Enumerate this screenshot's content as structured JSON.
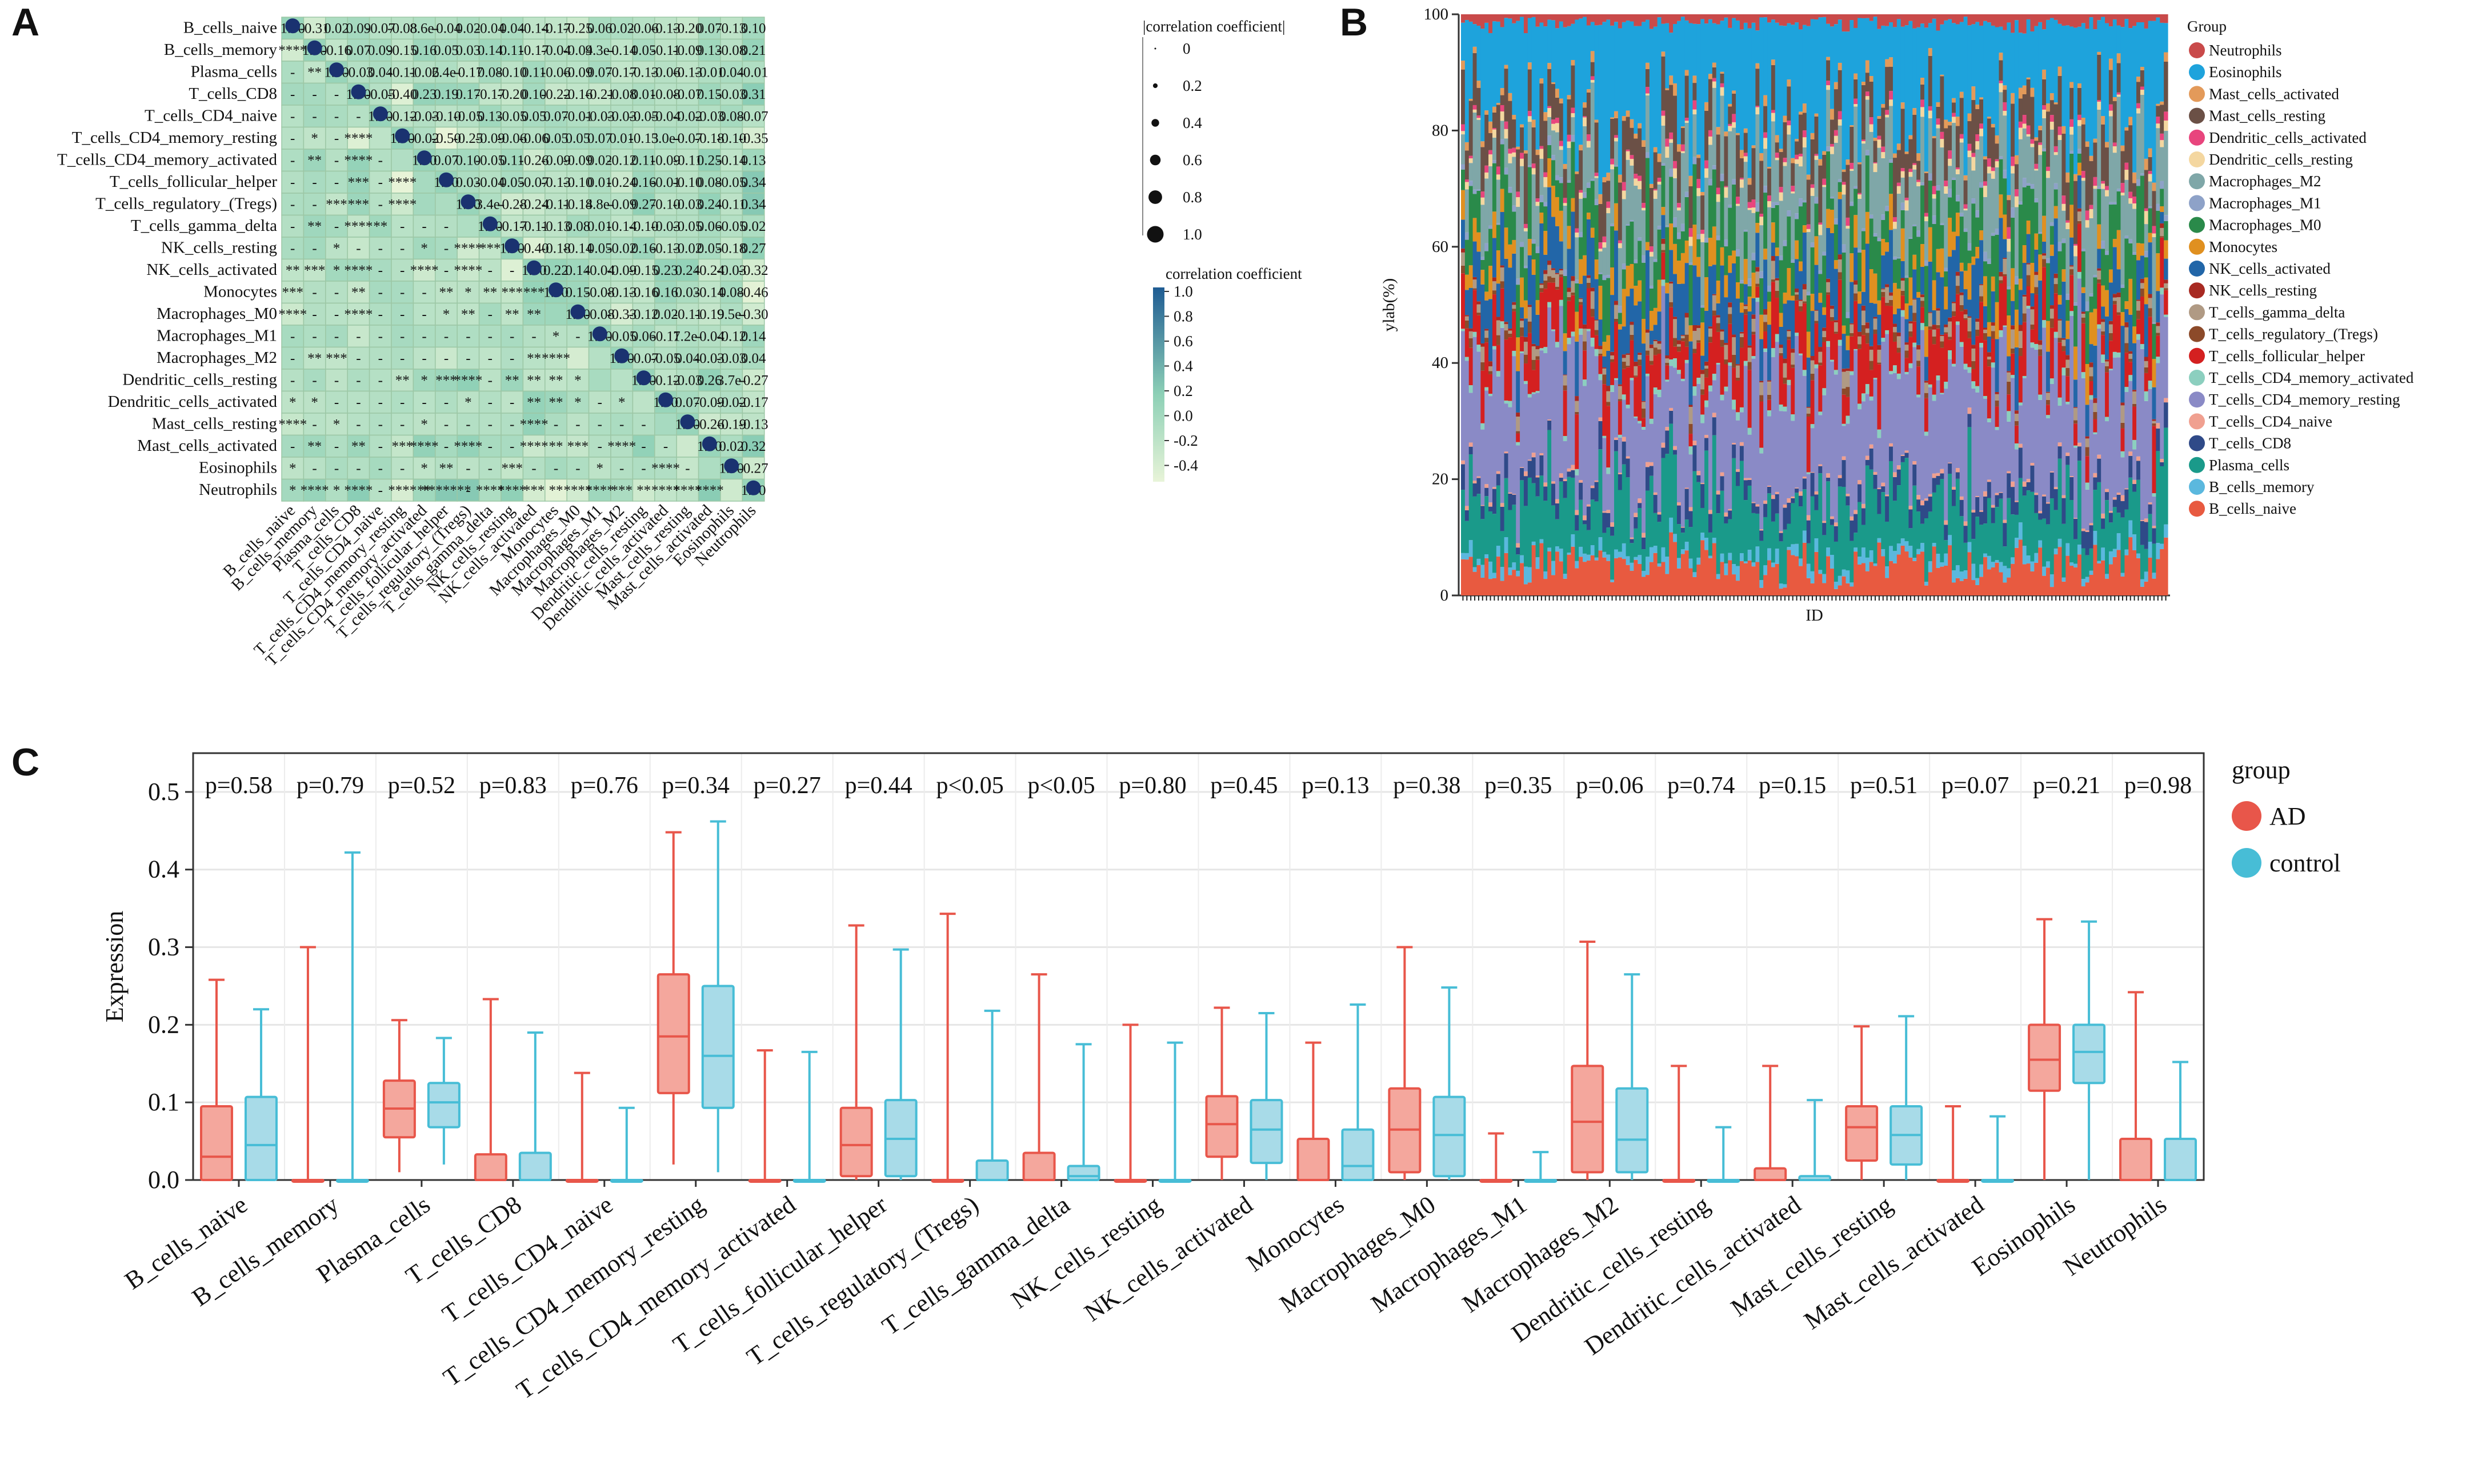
{
  "panels": {
    "a": "A",
    "b": "B",
    "c": "C"
  },
  "colors": {
    "ad": "#e8564a",
    "ad_fill": "#f4a79d",
    "control": "#47bdd6",
    "control_fill": "#a8dbe8",
    "heat_low": "#e8f4d8",
    "heat_mid": "#8dd0b6",
    "heat_high": "#1f5c93",
    "dot": "#1a3270"
  },
  "chart_data": [
    {
      "type": "heatmap",
      "panel": "A",
      "title": "",
      "cells": [
        "B_cells_naive",
        "B_cells_memory",
        "Plasma_cells",
        "T_cells_CD8",
        "T_cells_CD4_naive",
        "T_cells_CD4_memory_resting",
        "T_cells_CD4_memory_activated",
        "T_cells_follicular_helper",
        "T_cells_regulatory_(Tregs)",
        "T_cells_gamma_delta",
        "NK_cells_resting",
        "NK_cells_activated",
        "Monocytes",
        "Macrophages_M0",
        "Macrophages_M1",
        "Macrophages_M2",
        "Dendritic_cells_resting",
        "Dendritic_cells_activated",
        "Mast_cells_resting",
        "Mast_cells_activated",
        "Eosinophils",
        "Neutrophils"
      ],
      "upper_labels": [
        [
          "1.00",
          "-0.31",
          "0.02",
          "0.09",
          "-0.07",
          "-0.08",
          "8.6e-",
          "-0.04",
          "0.02",
          "-0.04",
          "0.04",
          "-0.14",
          "-0.17",
          "-0.25",
          "0.06",
          "0.02",
          "-0.06",
          "-0.13",
          "-0.20",
          "0.07",
          "-0.13",
          "0.10"
        ],
        [
          "",
          "1.00",
          "-0.16",
          "0.07",
          "0.09",
          "-0.15",
          "0.16",
          "0.05",
          "0.03",
          "0.14",
          "0.11",
          "-0.17",
          "-0.04",
          "-0.04",
          "9.3e-",
          "-0.14",
          "0.05",
          "-0.11",
          "-0.09",
          "0.13",
          "-0.08",
          "0.21"
        ],
        [
          "",
          "",
          "1.00",
          "-0.03",
          "0.04",
          "-0.11",
          "-0.06",
          "2.4e-",
          "-0.17",
          "0.08",
          "-0.10",
          "0.11",
          "-0.06",
          "-0.09",
          "0.07",
          "-0.17",
          "-0.13",
          "-0.06",
          "-0.13",
          "-0.01",
          "0.04",
          "-0.01"
        ],
        [
          "",
          "",
          "",
          "1.00",
          "-0.05",
          "-0.40",
          "0.23",
          "0.19",
          "0.17",
          "-0.17",
          "-0.20",
          "0.10",
          "-0.22",
          "-0.16",
          "-0.21",
          "-0.08",
          "0.01",
          "-0.08",
          "-0.07",
          "0.15",
          "-0.03",
          "0.31"
        ],
        [
          "",
          "",
          "",
          "",
          "1.00",
          "-0.12",
          "-0.03",
          "-0.10",
          "-0.05",
          "0.13",
          "-0.05",
          "0.05",
          "0.07",
          "-0.01",
          "-0.03",
          "-0.03",
          "-0.05",
          "-0.04",
          "-0.02",
          "-0.03",
          "0.08",
          "-0.07"
        ],
        [
          "",
          "",
          "",
          "",
          "",
          "1.00",
          "-0.02",
          "-0.50",
          "-0.25",
          "-0.09",
          "-0.06",
          "-0.06",
          "0.05",
          "0.05",
          "0.07",
          "0.01",
          "-0.13",
          "5.0e-",
          "-0.07",
          "-0.18",
          "-0.10",
          "-0.35"
        ],
        [
          "",
          "",
          "",
          "",
          "",
          "",
          "1.00",
          "0.07",
          "0.10",
          "-0.05",
          "0.11",
          "-0.26",
          "-0.09",
          "-0.09",
          "0.02",
          "-0.12",
          "0.11",
          "-0.09",
          "-0.11",
          "0.25",
          "-0.14",
          "0.13"
        ],
        [
          "",
          "",
          "",
          "",
          "",
          "",
          "",
          "1.00",
          "0.03",
          "-0.04",
          "0.05",
          "-0.07",
          "-0.13",
          "-0.10",
          "0.01",
          "-0.24",
          "0.16",
          "-0.01",
          "-0.10",
          "0.08",
          "-0.05",
          "0.34"
        ],
        [
          "",
          "",
          "",
          "",
          "",
          "",
          "",
          "",
          "1.00",
          "3.4e-",
          "-0.28",
          "-0.24",
          "-0.11",
          "-0.14",
          "8.8e-",
          "-0.09",
          "0.27",
          "-0.10",
          "-0.03",
          "0.24",
          "-0.11",
          "0.34"
        ],
        [
          "",
          "",
          "",
          "",
          "",
          "",
          "",
          "",
          "",
          "1.00",
          "-0.17",
          "-0.11",
          "-0.13",
          "0.08",
          "0.01",
          "-0.14",
          "-0.10",
          "-0.03",
          "-0.05",
          "0.06",
          "-0.05",
          "0.02"
        ],
        [
          "",
          "",
          "",
          "",
          "",
          "",
          "",
          "",
          "",
          "",
          "1.00",
          "-0.40",
          "-0.18",
          "-0.14",
          "0.05",
          "-0.02",
          "0.16",
          "-0.13",
          "-0.02",
          "0.05",
          "-0.18",
          "0.27"
        ],
        [
          "",
          "",
          "",
          "",
          "",
          "",
          "",
          "",
          "",
          "",
          "",
          "1.00",
          "0.22",
          "0.14",
          "-0.04",
          "-0.09",
          "-0.15",
          "0.23",
          "0.24",
          "-0.24",
          "-0.03",
          "-0.32"
        ],
        [
          "",
          "",
          "",
          "",
          "",
          "",
          "",
          "",
          "",
          "",
          "",
          "",
          "1.00",
          "0.15",
          "-0.08",
          "-0.13",
          "-0.16",
          "0.16",
          "0.03",
          "-0.14",
          "0.08",
          "-0.46"
        ],
        [
          "",
          "",
          "",
          "",
          "",
          "",
          "",
          "",
          "",
          "",
          "",
          "",
          "",
          "1.00",
          "-0.08",
          "-0.33",
          "-0.12",
          "0.02",
          "-0.11",
          "-0.19",
          "9.5e-",
          "-0.30"
        ],
        [
          "",
          "",
          "",
          "",
          "",
          "",
          "",
          "",
          "",
          "",
          "",
          "",
          "",
          "",
          "1.00",
          "-0.05",
          "0.06",
          "-0.11",
          "7.2e-",
          "-0.04",
          "-0.12",
          "0.14"
        ],
        [
          "",
          "",
          "",
          "",
          "",
          "",
          "",
          "",
          "",
          "",
          "",
          "",
          "",
          "",
          "",
          "1.00",
          "-0.07",
          "-0.05",
          "0.04",
          "-0.03",
          "-0.03",
          "0.04"
        ],
        [
          "",
          "",
          "",
          "",
          "",
          "",
          "",
          "",
          "",
          "",
          "",
          "",
          "",
          "",
          "",
          "",
          "1.00",
          "-0.12",
          "-0.03",
          "0.26",
          "3.7e-",
          "-0.27"
        ],
        [
          "",
          "",
          "",
          "",
          "",
          "",
          "",
          "",
          "",
          "",
          "",
          "",
          "",
          "",
          "",
          "",
          "",
          "1.00",
          "0.07",
          "-0.09",
          "-0.02",
          "-0.17"
        ],
        [
          "",
          "",
          "",
          "",
          "",
          "",
          "",
          "",
          "",
          "",
          "",
          "",
          "",
          "",
          "",
          "",
          "",
          "",
          "1.00",
          "-0.26",
          "-0.19",
          "-0.13"
        ],
        [
          "",
          "",
          "",
          "",
          "",
          "",
          "",
          "",
          "",
          "",
          "",
          "",
          "",
          "",
          "",
          "",
          "",
          "",
          "",
          "1.00",
          "0.02",
          "0.32"
        ],
        [
          "",
          "",
          "",
          "",
          "",
          "",
          "",
          "",
          "",
          "",
          "",
          "",
          "",
          "",
          "",
          "",
          "",
          "",
          "",
          "",
          "1.00",
          "-0.27"
        ],
        [
          "",
          "",
          "",
          "",
          "",
          "",
          "",
          "",
          "",
          "",
          "",
          "",
          "",
          "",
          "",
          "",
          "",
          "",
          "",
          "",
          "",
          "1.00"
        ]
      ],
      "lower_marks": [
        "****",
        "- **",
        "- - -",
        "- - - -",
        "- * - ****",
        "- ** - **** -",
        "- - - *** - ****",
        "- - *** *** - ****",
        "- ** - **** ** - - -",
        "- - * - - - * - **** ***",
        "** *** * **** - - **** - **** - -",
        "*** - - ** - - - ** * ** *** ***",
        "**** - - **** - - - * ** - ** **",
        "- - - - - - - - - - - - * -",
        "- ** *** - - - - - - - - ** ****",
        "- - - - - ** * *** **** - ** ** ** *",
        "* * - - - - - - * - - ** ** * - *",
        "**** - * - - - * - - - - **** - - - - -",
        "- ** - ** - *** **** - **** - - **** ** *** - **** - -",
        "* - - - - - * ** - - *** - - - * - - **** -",
        "* **** * **** - **** ** ******* - **** **** *** ** **** **** *** ** **** **** ****"
      ],
      "size_legend": {
        "title": "|correlation coefficient|",
        "ticks": [
          "0",
          "0.2",
          "0.4",
          "0.6",
          "0.8",
          "1.0"
        ]
      },
      "color_legend": {
        "title": "correlation coefficient",
        "ticks": [
          "1.0",
          "0.8",
          "0.6",
          "0.4",
          "0.2",
          "0.0",
          "-0.2",
          "-0.4"
        ]
      }
    },
    {
      "type": "area",
      "panel": "B",
      "xlabel": "ID",
      "ylabel": "ylab(%)",
      "ylim": [
        0,
        100
      ],
      "yticks": [
        "0",
        "20",
        "40",
        "60",
        "80",
        "100"
      ],
      "legend_title": "Group",
      "legend_position": "right",
      "series": [
        {
          "name": "Neutrophils",
          "color": "#c94a4a",
          "mean": 1.5
        },
        {
          "name": "Eosinophils",
          "color": "#1ea3dc",
          "mean": 15.5
        },
        {
          "name": "Mast_cells_activated",
          "color": "#e39a5a",
          "mean": 1.0
        },
        {
          "name": "Mast_cells_resting",
          "color": "#6b5046",
          "mean": 6.0
        },
        {
          "name": "Dendritic_cells_activated",
          "color": "#e8457d",
          "mean": 0.8
        },
        {
          "name": "Dendritic_cells_resting",
          "color": "#f4d7a0",
          "mean": 1.0
        },
        {
          "name": "Macrophages_M2",
          "color": "#7fa7a8",
          "mean": 8.5
        },
        {
          "name": "Macrophages_M1",
          "color": "#8ea2c8",
          "mean": 0.8
        },
        {
          "name": "Macrophages_M0",
          "color": "#2a8a4a",
          "mean": 6.5
        },
        {
          "name": "Monocytes",
          "color": "#e09020",
          "mean": 3.5
        },
        {
          "name": "NK_cells_activated",
          "color": "#2266a8",
          "mean": 6.5
        },
        {
          "name": "NK_cells_resting",
          "color": "#a82a22",
          "mean": 0.5
        },
        {
          "name": "T_cells_gamma_delta",
          "color": "#b09a84",
          "mean": 1.5
        },
        {
          "name": "T_cells_regulatory_(Tregs)",
          "color": "#8c4a2a",
          "mean": 1.0
        },
        {
          "name": "T_cells_follicular_helper",
          "color": "#d42020",
          "mean": 6.0
        },
        {
          "name": "T_cells_CD4_memory_activated",
          "color": "#8ccfbf",
          "mean": 0.8
        },
        {
          "name": "T_cells_CD4_memory_resting",
          "color": "#8a8ac6",
          "mean": 17.5
        },
        {
          "name": "T_cells_CD4_naive",
          "color": "#f0a090",
          "mean": 0.5
        },
        {
          "name": "T_cells_CD8",
          "color": "#2f4a88",
          "mean": 2.5
        },
        {
          "name": "Plasma_cells",
          "color": "#1a9a8a",
          "mean": 9.0
        },
        {
          "name": "B_cells_memory",
          "color": "#5bb8de",
          "mean": 1.5
        },
        {
          "name": "B_cells_naive",
          "color": "#e85a40",
          "mean": 5.0
        }
      ]
    },
    {
      "type": "box",
      "panel": "C",
      "ylabel": "Expression",
      "ylim": [
        0,
        0.55
      ],
      "yticks": [
        "0.0",
        "0.1",
        "0.2",
        "0.3",
        "0.4",
        "0.5"
      ],
      "legend_title": "group",
      "legend_position": "right",
      "series": [
        {
          "name": "AD"
        },
        {
          "name": "control"
        }
      ],
      "categories": [
        "B_cells_naive",
        "B_cells_memory",
        "Plasma_cells",
        "T_cells_CD8",
        "T_cells_CD4_naive",
        "T_cells_CD4_memory_resting",
        "T_cells_CD4_memory_activated",
        "T_cells_follicular_helper",
        "T_cells_regulatory_(Tregs)",
        "T_cells_gamma_delta",
        "NK_cells_resting",
        "NK_cells_activated",
        "Monocytes",
        "Macrophages_M0",
        "Macrophages_M1",
        "Macrophages_M2",
        "Dendritic_cells_resting",
        "Dendritic_cells_activated",
        "Mast_cells_resting",
        "Mast_cells_activated",
        "Eosinophils",
        "Neutrophils"
      ],
      "pvalues": [
        "p=0.58",
        "p=0.79",
        "p=0.52",
        "p=0.83",
        "p=0.76",
        "p=0.34",
        "p=0.27",
        "p=0.44",
        "p<0.05",
        "p<0.05",
        "p=0.80",
        "p=0.45",
        "p=0.13",
        "p=0.38",
        "p=0.35",
        "p=0.06",
        "p=0.74",
        "p=0.15",
        "p=0.51",
        "p=0.07",
        "p=0.21",
        "p=0.98"
      ],
      "AD": [
        [
          0,
          0,
          0.03,
          0.095,
          0.258
        ],
        [
          0,
          0,
          0,
          0,
          0.3
        ],
        [
          0.01,
          0.055,
          0.092,
          0.128,
          0.206
        ],
        [
          0,
          0,
          0,
          0.033,
          0.233
        ],
        [
          0,
          0,
          0,
          0,
          0.138
        ],
        [
          0.02,
          0.112,
          0.185,
          0.265,
          0.448
        ],
        [
          0,
          0,
          0,
          0,
          0.167
        ],
        [
          0,
          0.005,
          0.045,
          0.093,
          0.328
        ],
        [
          0,
          0,
          0,
          0,
          0.343
        ],
        [
          0,
          0,
          0,
          0.035,
          0.265
        ],
        [
          0,
          0,
          0,
          0,
          0.2
        ],
        [
          0,
          0.03,
          0.072,
          0.108,
          0.222
        ],
        [
          0,
          0,
          0,
          0.053,
          0.177
        ],
        [
          0,
          0.01,
          0.065,
          0.118,
          0.3
        ],
        [
          0,
          0,
          0,
          0,
          0.06
        ],
        [
          0,
          0.01,
          0.075,
          0.147,
          0.307
        ],
        [
          0,
          0,
          0,
          0,
          0.147
        ],
        [
          0,
          0,
          0,
          0.015,
          0.147
        ],
        [
          0,
          0.025,
          0.068,
          0.095,
          0.198
        ],
        [
          0,
          0,
          0,
          0,
          0.095
        ],
        [
          0,
          0.115,
          0.155,
          0.2,
          0.336
        ],
        [
          0,
          0,
          0,
          0.053,
          0.242
        ]
      ],
      "control": [
        [
          0,
          0,
          0.045,
          0.107,
          0.22
        ],
        [
          0,
          0,
          0,
          0,
          0.422
        ],
        [
          0.02,
          0.068,
          0.1,
          0.125,
          0.183
        ],
        [
          0,
          0,
          0,
          0.035,
          0.19
        ],
        [
          0,
          0,
          0,
          0,
          0.093
        ],
        [
          0.01,
          0.093,
          0.16,
          0.25,
          0.462
        ],
        [
          0,
          0,
          0,
          0,
          0.165
        ],
        [
          0,
          0.005,
          0.053,
          0.103,
          0.297
        ],
        [
          0,
          0,
          0,
          0.025,
          0.218
        ],
        [
          0,
          0,
          0.005,
          0.018,
          0.175
        ],
        [
          0,
          0,
          0,
          0,
          0.177
        ],
        [
          0,
          0.022,
          0.065,
          0.103,
          0.215
        ],
        [
          0,
          0,
          0.018,
          0.065,
          0.226
        ],
        [
          0,
          0.005,
          0.058,
          0.107,
          0.248
        ],
        [
          0,
          0,
          0,
          0,
          0.036
        ],
        [
          0,
          0.01,
          0.052,
          0.118,
          0.265
        ],
        [
          0,
          0,
          0,
          0,
          0.068
        ],
        [
          0,
          0,
          0,
          0.005,
          0.103
        ],
        [
          0,
          0.02,
          0.058,
          0.095,
          0.211
        ],
        [
          0,
          0,
          0,
          0,
          0.082
        ],
        [
          0,
          0.125,
          0.165,
          0.2,
          0.333
        ],
        [
          0,
          0,
          0,
          0.053,
          0.152
        ]
      ]
    }
  ]
}
